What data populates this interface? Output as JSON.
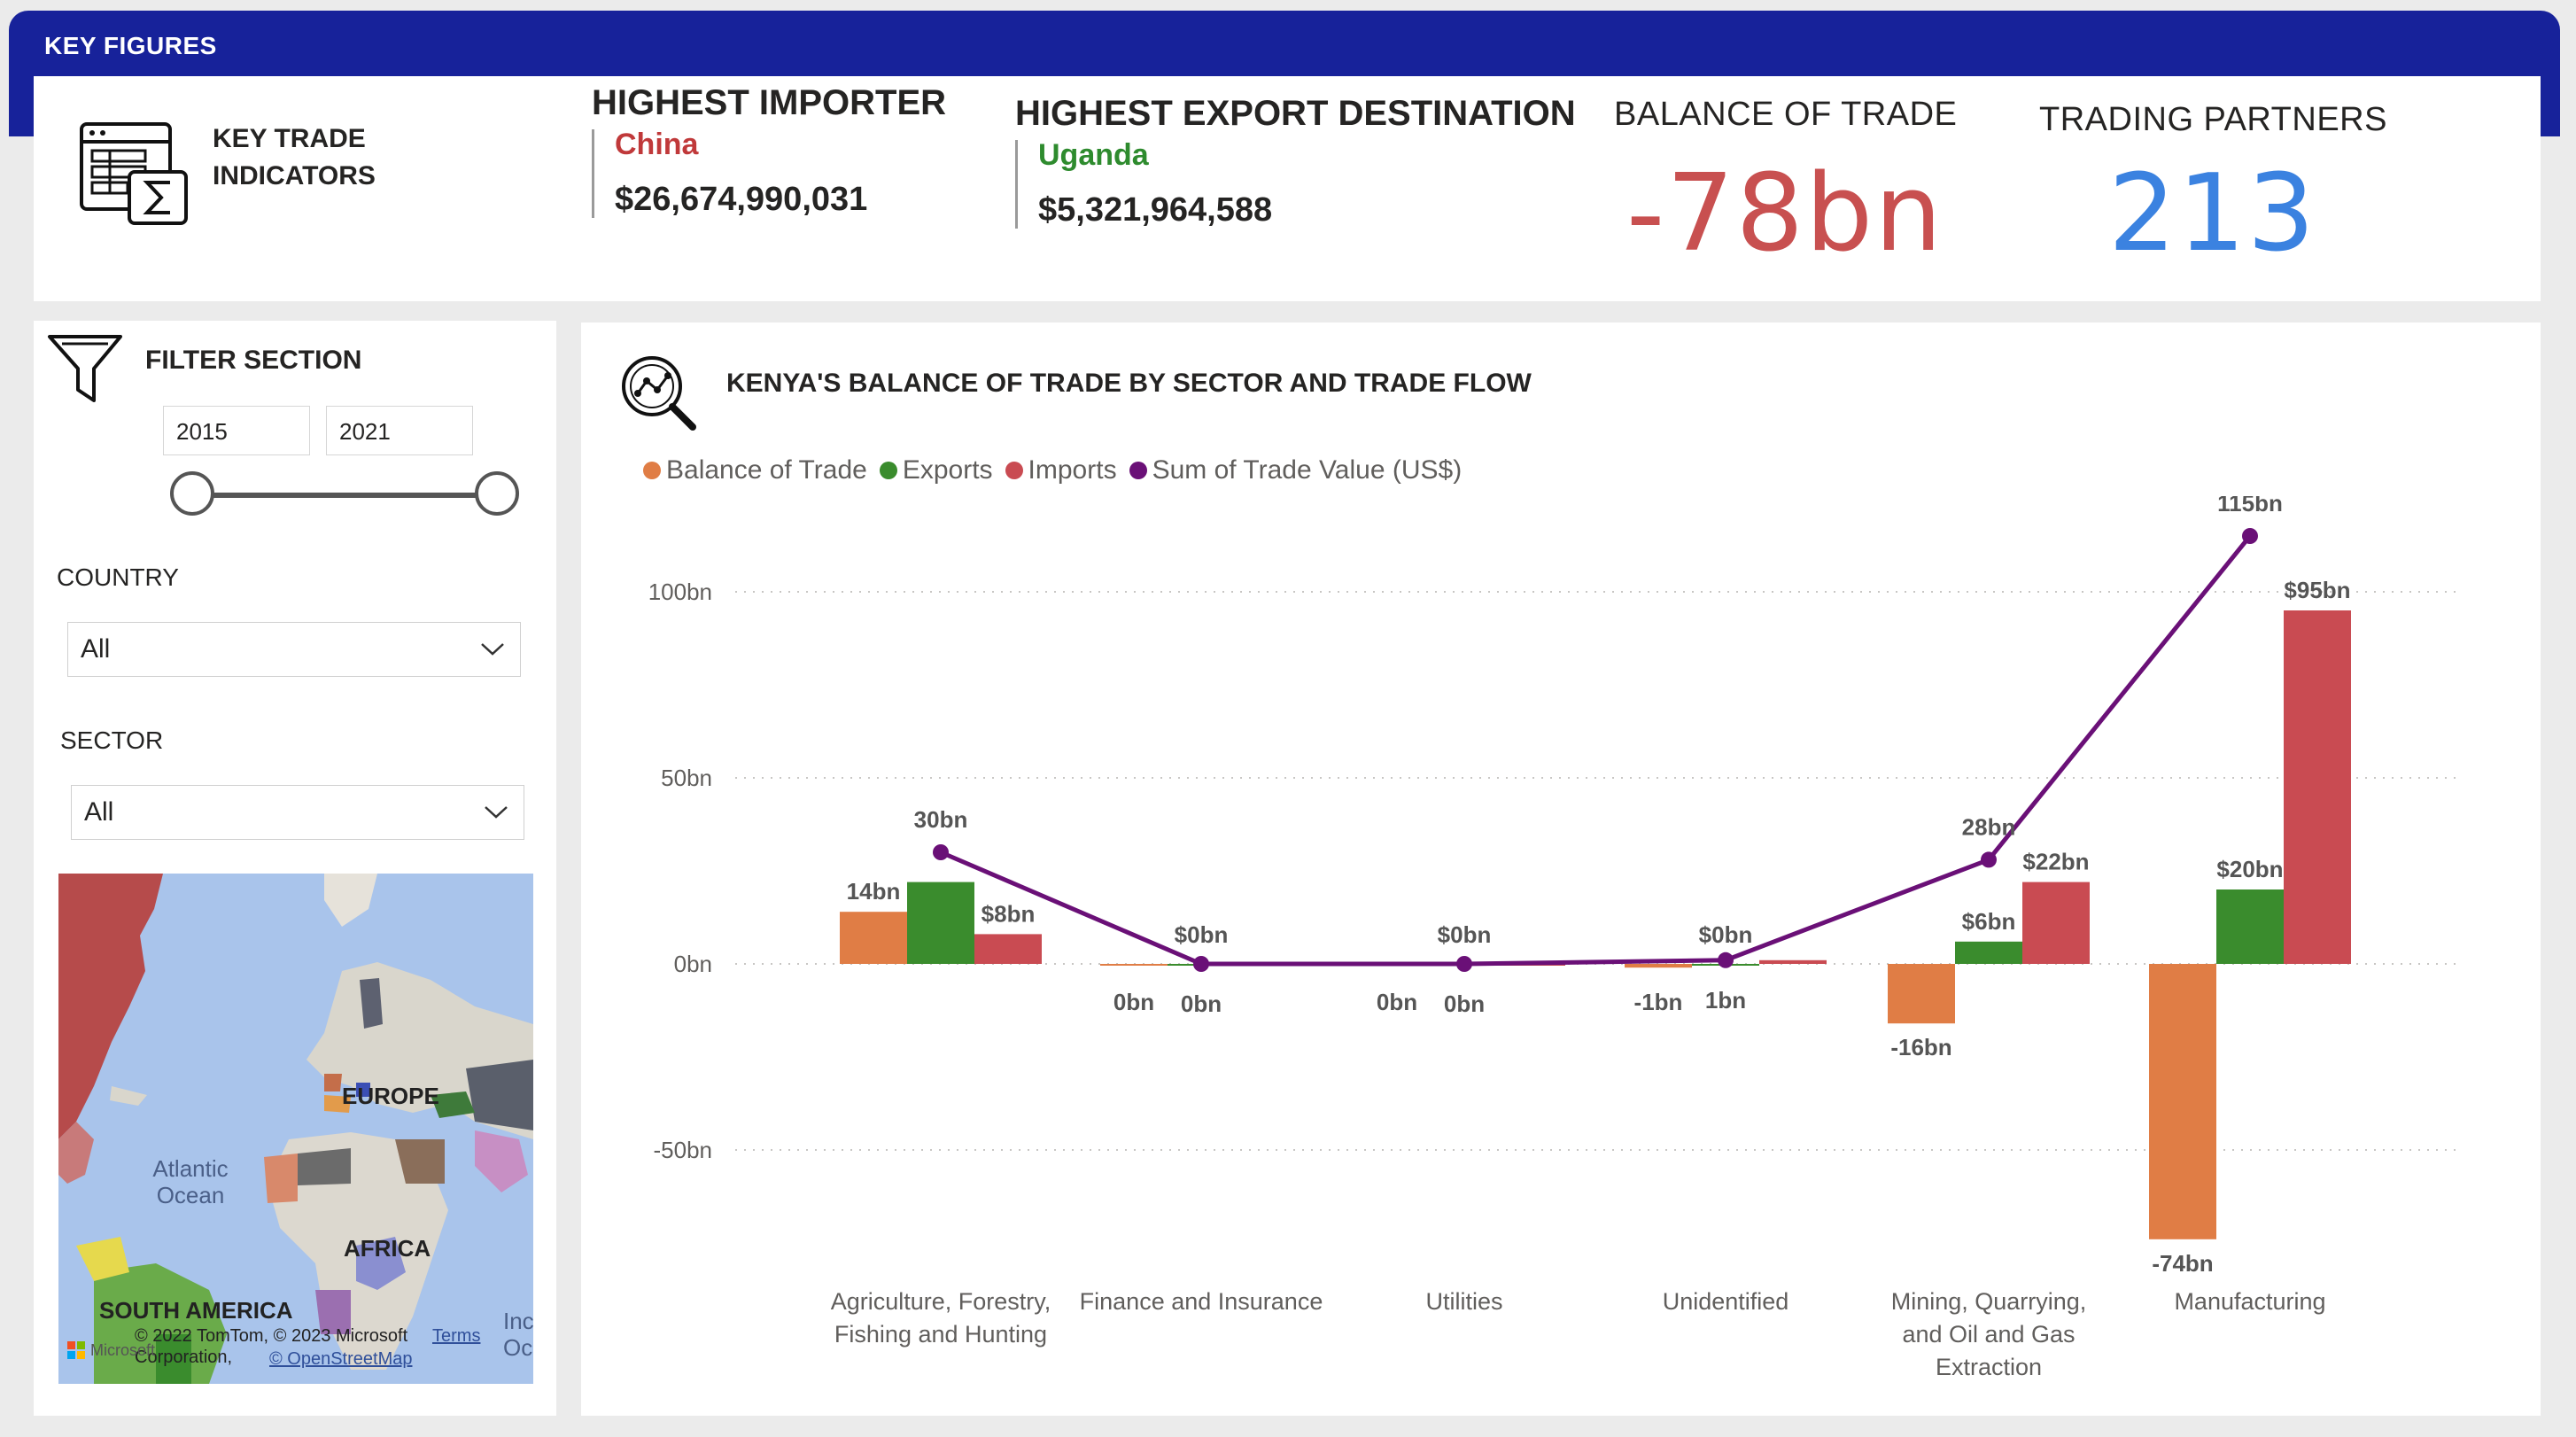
{
  "header": {
    "title": "KEY FIGURES"
  },
  "key_figures": {
    "indicators_label": "KEY TRADE INDICATORS",
    "highest_importer": {
      "heading": "HIGHEST IMPORTER",
      "name": "China",
      "value": "$26,674,990,031"
    },
    "highest_export_destination": {
      "heading": "HIGHEST EXPORT DESTINATION",
      "name": "Uganda",
      "value": "$5,321,964,588"
    },
    "balance_of_trade": {
      "heading": "BALANCE OF TRADE",
      "value": "-78bn",
      "color": "#c85050"
    },
    "trading_partners": {
      "heading": "TRADING PARTNERS",
      "value": "213",
      "color": "#3b82e0"
    }
  },
  "filters": {
    "title": "FILTER SECTION",
    "year_start": "2015",
    "year_end": "2021",
    "country": {
      "label": "COUNTRY",
      "value": "All"
    },
    "sector": {
      "label": "SECTOR",
      "value": "All"
    },
    "map": {
      "labels": {
        "europe": "EUROPE",
        "africa": "AFRICA",
        "south_america": "SOUTH AMERICA",
        "atlantic": "Atlantic Ocean",
        "india_fragment": "Inc",
        "ocean_fragment": "Oc"
      },
      "attribution": "© 2022 TomTom, © 2023 Microsoft Corporation,",
      "terms": "Terms",
      "osm": "© OpenStreetMap",
      "microsoft": "Microsoft"
    }
  },
  "chart": {
    "title": "KENYA'S BALANCE OF TRADE BY SECTOR AND TRADE FLOW",
    "legend": [
      "Balance of Trade",
      "Exports",
      "Imports",
      "Sum of Trade Value (US$)"
    ]
  },
  "colors": {
    "balance": "#e07d45",
    "exports": "#3a8c2d",
    "imports": "#c94b52",
    "sum": "#6a1077",
    "banner": "#17229a"
  },
  "chart_data": {
    "type": "bar",
    "categories": [
      [
        "Agriculture, Forestry,",
        "Fishing and Hunting"
      ],
      [
        "Finance and Insurance"
      ],
      [
        "Utilities"
      ],
      [
        "Unidentified"
      ],
      [
        "Mining, Quarrying,",
        "and Oil and Gas",
        "Extraction"
      ],
      [
        "Manufacturing"
      ]
    ],
    "y_ticks": [
      {
        "value": 100,
        "label": "100bn"
      },
      {
        "value": 50,
        "label": "50bn"
      },
      {
        "value": 0,
        "label": "0bn"
      },
      {
        "value": -50,
        "label": "-50bn"
      }
    ],
    "ylim": [
      -80,
      120
    ],
    "grid": true,
    "legend_position": "top-left",
    "series": [
      {
        "name": "Balance of Trade",
        "type": "bar",
        "values": [
          14,
          0,
          0,
          -1,
          -16,
          -74
        ],
        "labels": [
          "14bn",
          "0bn",
          "0bn",
          "-1bn",
          "-16bn",
          "-74bn"
        ]
      },
      {
        "name": "Exports",
        "type": "bar",
        "values": [
          22,
          0,
          0,
          0,
          6,
          20
        ],
        "labels": [
          "",
          "$0bn",
          "$0bn",
          "$0bn",
          "$6bn",
          "$20bn"
        ]
      },
      {
        "name": "Imports",
        "type": "bar",
        "values": [
          8,
          0,
          0,
          1,
          22,
          95
        ],
        "labels": [
          "$8bn",
          "",
          "",
          "",
          "$22bn",
          "$95bn"
        ]
      },
      {
        "name": "Sum of Trade Value (US$)",
        "type": "line",
        "values": [
          30,
          0,
          0,
          1,
          28,
          115
        ],
        "labels": [
          "30bn",
          "0bn",
          "0bn",
          "1bn",
          "28bn",
          "115bn"
        ]
      }
    ]
  }
}
